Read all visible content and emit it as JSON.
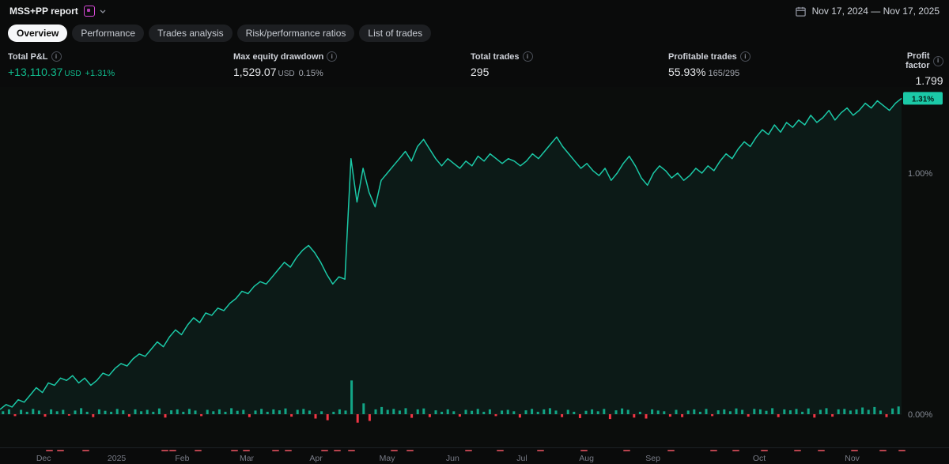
{
  "header": {
    "title": "MSS+PP report",
    "date_range": "Nov 17, 2024 — Nov 17, 2025"
  },
  "tabs": [
    {
      "label": "Overview",
      "active": true
    },
    {
      "label": "Performance",
      "active": false
    },
    {
      "label": "Trades analysis",
      "active": false
    },
    {
      "label": "Risk/performance ratios",
      "active": false
    },
    {
      "label": "List of trades",
      "active": false
    }
  ],
  "stats": [
    {
      "label": "Total P&L",
      "value": "+13,110.37",
      "unit": "USD",
      "extra": "+1.31%"
    },
    {
      "label": "Max equity drawdown",
      "value": "1,529.07",
      "unit": "USD",
      "extra": "0.15%"
    },
    {
      "label": "Total trades",
      "value": "295"
    },
    {
      "label": "Profitable trades",
      "value": "55.93%",
      "extra": "165/295"
    },
    {
      "label": "Profit factor",
      "value": "1.799"
    }
  ],
  "chart_data": {
    "type": "line",
    "title": "Cumulative equity (%) with per-trade P&L bars",
    "y_axis": [
      {
        "label": "1.00%",
        "value": 1.0
      },
      {
        "label": "0.00%",
        "value": 0.0
      }
    ],
    "last_value_label": "1.31%",
    "last_value": 1.31,
    "equity_pct": [
      0.02,
      0.04,
      0.03,
      0.06,
      0.05,
      0.08,
      0.11,
      0.09,
      0.13,
      0.12,
      0.15,
      0.14,
      0.16,
      0.13,
      0.15,
      0.12,
      0.14,
      0.17,
      0.16,
      0.19,
      0.21,
      0.2,
      0.23,
      0.25,
      0.24,
      0.27,
      0.3,
      0.28,
      0.32,
      0.35,
      0.33,
      0.37,
      0.4,
      0.38,
      0.42,
      0.41,
      0.44,
      0.43,
      0.46,
      0.48,
      0.51,
      0.5,
      0.53,
      0.55,
      0.54,
      0.57,
      0.6,
      0.63,
      0.61,
      0.65,
      0.68,
      0.7,
      0.67,
      0.63,
      0.58,
      0.54,
      0.57,
      0.56,
      1.06,
      0.88,
      1.02,
      0.92,
      0.86,
      0.97,
      1.0,
      1.03,
      1.06,
      1.09,
      1.05,
      1.11,
      1.14,
      1.1,
      1.06,
      1.03,
      1.06,
      1.04,
      1.02,
      1.05,
      1.03,
      1.07,
      1.05,
      1.08,
      1.06,
      1.04,
      1.06,
      1.05,
      1.03,
      1.05,
      1.08,
      1.06,
      1.09,
      1.12,
      1.15,
      1.11,
      1.08,
      1.05,
      1.02,
      1.04,
      1.01,
      0.99,
      1.02,
      0.97,
      1.0,
      1.04,
      1.07,
      1.03,
      0.98,
      0.95,
      1.0,
      1.03,
      1.01,
      0.98,
      1.0,
      0.97,
      0.99,
      1.02,
      1.0,
      1.03,
      1.01,
      1.05,
      1.08,
      1.06,
      1.1,
      1.13,
      1.11,
      1.15,
      1.18,
      1.16,
      1.2,
      1.17,
      1.21,
      1.19,
      1.22,
      1.2,
      1.24,
      1.21,
      1.23,
      1.26,
      1.22,
      1.25,
      1.27,
      1.24,
      1.26,
      1.29,
      1.27,
      1.3,
      1.28,
      1.26,
      1.29,
      1.31
    ],
    "trade_bars_pct": [
      0.012,
      0.02,
      -0.008,
      0.018,
      0.01,
      0.022,
      0.015,
      -0.01,
      0.02,
      0.012,
      0.018,
      -0.006,
      0.015,
      0.025,
      0.01,
      -0.012,
      0.02,
      0.014,
      0.01,
      0.022,
      0.016,
      -0.01,
      0.02,
      0.012,
      0.018,
      0.01,
      0.024,
      -0.014,
      0.016,
      0.02,
      0.01,
      0.022,
      0.015,
      -0.008,
      0.018,
      0.012,
      0.02,
      0.01,
      0.025,
      0.014,
      0.018,
      -0.012,
      0.015,
      0.022,
      0.01,
      0.02,
      0.016,
      0.024,
      -0.01,
      0.018,
      0.022,
      0.015,
      -0.018,
      0.012,
      -0.025,
      0.01,
      0.02,
      0.015,
      0.14,
      -0.035,
      0.045,
      -0.028,
      0.02,
      0.03,
      0.018,
      0.022,
      0.015,
      0.025,
      -0.015,
      0.02,
      0.024,
      -0.012,
      0.016,
      0.01,
      0.02,
      0.012,
      -0.01,
      0.018,
      0.014,
      0.022,
      0.01,
      0.02,
      -0.008,
      0.015,
      0.018,
      0.012,
      -0.014,
      0.016,
      0.022,
      0.01,
      0.02,
      0.025,
      0.015,
      -0.012,
      0.018,
      0.01,
      -0.016,
      0.014,
      0.02,
      0.012,
      0.022,
      -0.02,
      0.016,
      0.024,
      0.018,
      -0.014,
      0.01,
      -0.018,
      0.02,
      0.015,
      0.012,
      -0.01,
      0.018,
      -0.012,
      0.015,
      0.02,
      0.01,
      0.022,
      -0.008,
      0.016,
      0.02,
      0.012,
      0.024,
      0.018,
      -0.01,
      0.022,
      0.02,
      0.014,
      0.025,
      -0.012,
      0.02,
      0.016,
      0.022,
      0.01,
      0.024,
      -0.014,
      0.018,
      0.025,
      -0.01,
      0.02,
      0.022,
      0.015,
      0.02,
      0.028,
      0.018,
      0.03,
      0.015,
      -0.012,
      0.024,
      0.032
    ],
    "x_labels": [
      {
        "label": "Dec",
        "x": 0.046
      },
      {
        "label": "2025",
        "x": 0.123
      },
      {
        "label": "Feb",
        "x": 0.192
      },
      {
        "label": "Mar",
        "x": 0.26
      },
      {
        "label": "Apr",
        "x": 0.333
      },
      {
        "label": "May",
        "x": 0.408
      },
      {
        "label": "Jun",
        "x": 0.477
      },
      {
        "label": "Jul",
        "x": 0.55
      },
      {
        "label": "Aug",
        "x": 0.618
      },
      {
        "label": "Sep",
        "x": 0.688
      },
      {
        "label": "Oct",
        "x": 0.8
      },
      {
        "label": "Nov",
        "x": 0.898
      }
    ],
    "loss_markers_x": [
      0.048,
      0.06,
      0.087,
      0.17,
      0.178,
      0.205,
      0.243,
      0.256,
      0.287,
      0.3,
      0.338,
      0.352,
      0.367,
      0.412,
      0.428,
      0.49,
      0.523,
      0.566,
      0.612,
      0.657,
      0.703,
      0.748,
      0.772,
      0.802,
      0.837,
      0.862,
      0.897,
      0.927,
      0.947
    ],
    "colors": {
      "line": "#1bc9a7",
      "fill": "rgba(27,201,167,0.07)",
      "bar_pos": "#12a586",
      "bar_neg": "#f23645",
      "badge_bg": "#1bc9a7",
      "badge_text": "#06201a",
      "loss_marker": "#b8434e"
    }
  }
}
